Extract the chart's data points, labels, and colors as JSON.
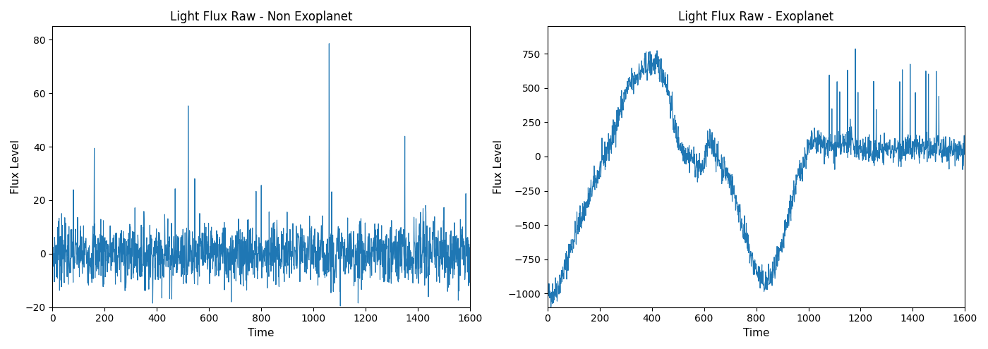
{
  "title_left": "Light Flux Raw - Non Exoplanet",
  "title_right": "Light Flux Raw - Exoplanet",
  "xlabel": "Time",
  "ylabel": "Flux Level",
  "line_color": "#1f77b4",
  "line_width": 0.8,
  "background_color": "#ffffff",
  "figsize": [
    14.0,
    4.95
  ],
  "dpi": 100
}
